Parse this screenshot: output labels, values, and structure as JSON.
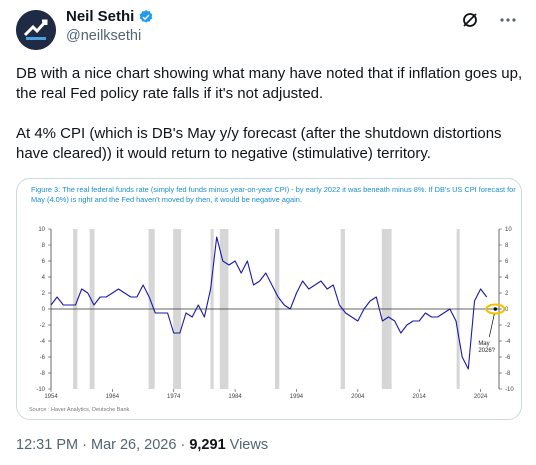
{
  "author": {
    "name": "Neil Sethi",
    "handle": "@neilksethi",
    "verified": true,
    "avatar_icon": "logo-avatar-icon"
  },
  "top_icons": [
    "grok-icon",
    "more-options-icon"
  ],
  "tweet": {
    "paragraphs": [
      "DB with a nice chart showing what many have noted that if inflation goes up, the real Fed policy rate falls if it's not adjusted.",
      "At 4% CPI (which is DB's May y/y forecast (after the shutdown distortions have cleared)) it would return to negative (stimulative) territory."
    ]
  },
  "figure": {
    "caption": "Figure 3: The real federal funds rate (simply fed funds minus year-on-year CPI) - by early 2022 it was beneath minus 8%. If DB's US CPI forecast for May (4.0%) is right and the Fed haven't moved by then, it would be negative again.",
    "source": "Source : Haver Analytics, Deutsche Bank",
    "annotation": "May 2026?",
    "colors": {
      "line": "#1a1aa6",
      "caption": "#1a8fd0",
      "recession": "#d6d6d6",
      "highlight": "#f2c200"
    }
  },
  "chart_data": {
    "type": "line",
    "title": "",
    "xlabel": "",
    "ylabel": "",
    "x_ticks": [
      "1954",
      "1964",
      "1974",
      "1984",
      "1994",
      "2004",
      "2014",
      "2024"
    ],
    "y_ticks": [
      "10",
      "8",
      "6",
      "4",
      "2",
      "0",
      "-2",
      "-4",
      "-6",
      "-8",
      "-10"
    ],
    "xlim": [
      1954,
      2027
    ],
    "ylim": [
      -10,
      10
    ],
    "recessions": [
      [
        1957.6,
        1958.3
      ],
      [
        1960.3,
        1961.1
      ],
      [
        1969.9,
        1970.9
      ],
      [
        1973.9,
        1975.2
      ],
      [
        1980.0,
        1980.5
      ],
      [
        1981.5,
        1982.9
      ],
      [
        1990.5,
        1991.2
      ],
      [
        2001.2,
        2001.9
      ],
      [
        2007.9,
        2009.5
      ],
      [
        2020.1,
        2020.4
      ]
    ],
    "series": [
      {
        "x": [
          1954,
          1955,
          1956,
          1957,
          1958,
          1959,
          1960,
          1961,
          1962,
          1963,
          1964,
          1965,
          1966,
          1967,
          1968,
          1969,
          1970,
          1971,
          1972,
          1973,
          1974,
          1975,
          1976,
          1977,
          1978,
          1979,
          1980,
          1981,
          1982,
          1983,
          1984,
          1985,
          1986,
          1987,
          1988,
          1989,
          1990,
          1991,
          1992,
          1993,
          1994,
          1995,
          1996,
          1997,
          1998,
          1999,
          2000,
          2001,
          2002,
          2003,
          2004,
          2005,
          2006,
          2007,
          2008,
          2009,
          2010,
          2011,
          2012,
          2013,
          2014,
          2015,
          2016,
          2017,
          2018,
          2019,
          2020,
          2021,
          2022,
          2023,
          2024,
          2025
        ],
        "values": [
          0.5,
          1.5,
          0.5,
          0.5,
          0.5,
          2.5,
          2.0,
          0.5,
          1.5,
          1.5,
          2.0,
          2.5,
          2.0,
          1.5,
          1.5,
          3.0,
          1.5,
          -0.5,
          -0.5,
          -0.5,
          -3.0,
          -3.0,
          -0.5,
          -1.0,
          0.5,
          -1.0,
          2.5,
          9.0,
          6.0,
          5.5,
          6.0,
          4.5,
          6.0,
          3.0,
          3.5,
          4.5,
          3.0,
          1.5,
          0.5,
          0.0,
          2.0,
          3.5,
          2.5,
          3.0,
          3.5,
          2.5,
          3.0,
          0.5,
          -0.5,
          -1.0,
          -1.5,
          0.0,
          1.0,
          1.5,
          -1.5,
          -1.0,
          -1.5,
          -3.0,
          -2.0,
          -1.5,
          -1.5,
          -0.5,
          -1.0,
          -1.0,
          -0.5,
          0.0,
          -1.5,
          -6.0,
          -7.5,
          1.0,
          2.5,
          1.5
        ]
      }
    ],
    "forecast": {
      "x": 2026.4,
      "y": 0.0,
      "label": "May 2026?"
    }
  },
  "footer": {
    "time": "12:31 PM",
    "separator": "·",
    "date": "Mar 26, 2026",
    "views_count": "9,291",
    "views_label": "Views"
  }
}
